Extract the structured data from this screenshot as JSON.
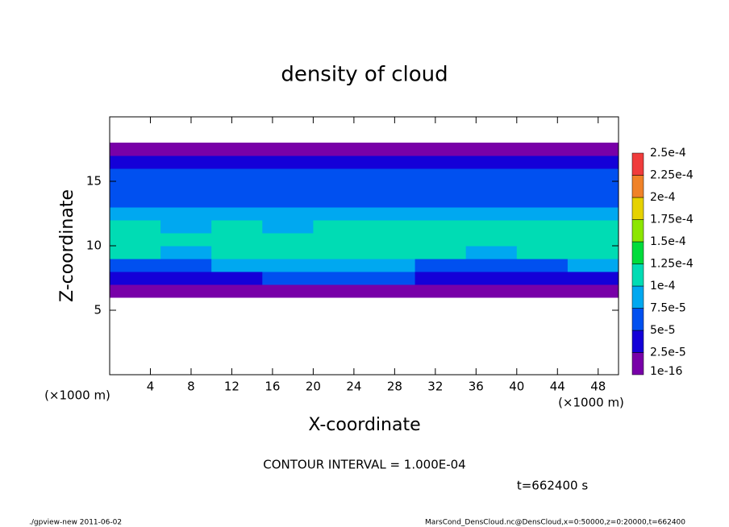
{
  "chart_data": {
    "type": "heatmap",
    "title": "density of cloud",
    "x_label": "X-coordinate",
    "y_label": "Z-coordinate",
    "x_unit_labels": [
      "(×1000 m)",
      "(×1000 m)"
    ],
    "annotation": "CONTOUR INTERVAL = 1.000E-04",
    "time_label": "t=662400 s",
    "footer_left": "./gpview-new  2011-06-02",
    "footer_right": "MarsCond_DensCloud.nc@DensCloud,x=0:50000,z=0:20000,t=662400",
    "xlim": [
      0,
      50
    ],
    "ylim": [
      0,
      20
    ],
    "xticks": [
      4,
      8,
      12,
      16,
      20,
      24,
      28,
      32,
      36,
      40,
      44,
      48
    ],
    "yticks": [
      5,
      10,
      15
    ],
    "x": [
      2.5,
      7.5,
      12.5,
      17.5,
      22.5,
      27.5,
      32.5,
      37.5,
      42.5,
      47.5
    ],
    "y": [
      6.5,
      7.5,
      8.5,
      9.5,
      10.5,
      11.5,
      12.5,
      13.5,
      14.5,
      15.5,
      16.5,
      17.5
    ],
    "values": [
      [
        1e-05,
        1e-05,
        1e-05,
        1e-05,
        1e-05,
        1e-05,
        1e-05,
        1e-05,
        1e-05,
        1e-05
      ],
      [
        4e-05,
        3e-05,
        4e-05,
        5e-05,
        6e-05,
        5e-05,
        4e-05,
        3e-05,
        4e-05,
        4e-05
      ],
      [
        7e-05,
        7e-05,
        8e-05,
        9e-05,
        9e-05,
        8e-05,
        7e-05,
        7e-05,
        7e-05,
        8e-05
      ],
      [
        0.0001,
        9.5e-05,
        0.0001,
        0.0001,
        0.00011,
        0.000105,
        0.0001,
        9.5e-05,
        0.0001,
        0.0001
      ],
      [
        0.000105,
        0.0001,
        0.00011,
        0.00011,
        0.00012,
        0.000115,
        0.00011,
        0.000105,
        0.00011,
        0.000105
      ],
      [
        0.0001,
        9.5e-05,
        0.0001,
        9.5e-05,
        0.0001,
        0.0001,
        0.0001,
        0.0001,
        0.0001,
        0.0001
      ],
      [
        8e-05,
        8e-05,
        7.8e-05,
        8e-05,
        8.5e-05,
        8e-05,
        8e-05,
        7.8e-05,
        8e-05,
        8e-05
      ],
      [
        7e-05,
        7e-05,
        7e-05,
        7e-05,
        7e-05,
        7e-05,
        7e-05,
        7e-05,
        7e-05,
        7e-05
      ],
      [
        6.5e-05,
        6e-05,
        6.5e-05,
        6e-05,
        6.5e-05,
        6.5e-05,
        6e-05,
        6.5e-05,
        6e-05,
        6.5e-05
      ],
      [
        6e-05,
        5.5e-05,
        6e-05,
        6e-05,
        5.5e-05,
        6e-05,
        6e-05,
        5.5e-05,
        6e-05,
        6e-05
      ],
      [
        3e-05,
        3e-05,
        3e-05,
        3e-05,
        3e-05,
        3e-05,
        3e-05,
        3e-05,
        3e-05,
        3e-05
      ],
      [
        1e-05,
        1e-05,
        1e-05,
        1e-05,
        1e-05,
        1e-05,
        1e-05,
        1e-05,
        1e-05,
        1e-05
      ]
    ],
    "levels": [
      {
        "value": 1e-16,
        "label": "1e-16"
      },
      {
        "value": 2.5e-05,
        "label": "2.5e-5"
      },
      {
        "value": 5e-05,
        "label": "5e-5"
      },
      {
        "value": 7.5e-05,
        "label": "7.5e-5"
      },
      {
        "value": 0.0001,
        "label": "1e-4"
      },
      {
        "value": 0.000125,
        "label": "1.25e-4"
      },
      {
        "value": 0.00015,
        "label": "1.5e-4"
      },
      {
        "value": 0.000175,
        "label": "1.75e-4"
      },
      {
        "value": 0.0002,
        "label": "2e-4"
      },
      {
        "value": 0.000225,
        "label": "2.25e-4"
      },
      {
        "value": 0.00025,
        "label": "2.5e-4"
      }
    ],
    "colors": [
      "#7800a8",
      "#1400d8",
      "#0050f0",
      "#00a8f0",
      "#00dcb4",
      "#00dc3c",
      "#8ce600",
      "#e6d200",
      "#f08228",
      "#f03c3c"
    ],
    "top_color": "#f0a0a0"
  }
}
